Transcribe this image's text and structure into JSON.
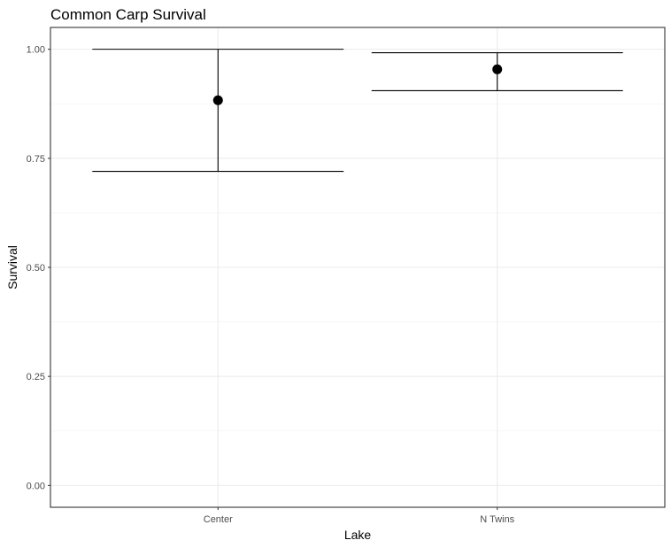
{
  "chart_data": {
    "type": "errorbar",
    "title": "Common Carp Survival",
    "xlabel": "Lake",
    "ylabel": "Survival",
    "categories": [
      "Center",
      "N Twins"
    ],
    "estimates": [
      0.883,
      0.954
    ],
    "lower": [
      0.72,
      0.905
    ],
    "upper": [
      1.0,
      0.992
    ],
    "ylim": [
      -0.05,
      1.05
    ],
    "yticks": [
      0.0,
      0.25,
      0.5,
      0.75,
      1.0
    ],
    "ytick_labels": [
      "0.00",
      "0.25",
      "0.50",
      "0.75",
      "1.00"
    ],
    "grid": true,
    "theme": "bw",
    "colors": {
      "point": "#000000",
      "errorbar": "#000000",
      "grid_major": "#ebebeb",
      "grid_minor": "#f2f2f2",
      "border": "#333333",
      "tick_text": "#4d4d4d"
    }
  }
}
